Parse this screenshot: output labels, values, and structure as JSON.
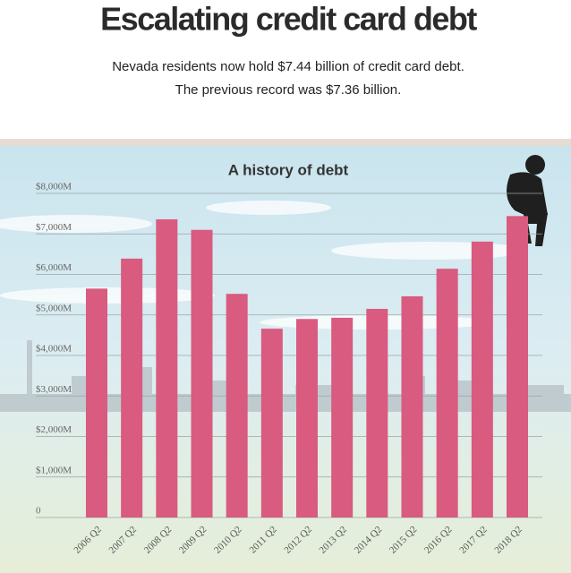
{
  "chart_data": {
    "type": "bar",
    "title": "Escalating credit card debt",
    "subtitle": [
      "Nevada residents now hold $7.44 billion of credit card debt.",
      "The previous record was $7.36 billion."
    ],
    "chart_title": "A history of debt",
    "categories": [
      "2006 Q2",
      "2007 Q2",
      "2008 Q2",
      "2009 Q2",
      "2010 Q2",
      "2011 Q2",
      "2012 Q2",
      "2013 Q2",
      "2014 Q2",
      "2015 Q2",
      "2016 Q2",
      "2017 Q2",
      "2018 Q2"
    ],
    "values": [
      5650,
      6390,
      7360,
      7100,
      5520,
      4660,
      4900,
      4930,
      5150,
      5460,
      6140,
      6810,
      7440
    ],
    "color": "#d95b7f",
    "ylim": [
      0,
      8000
    ],
    "yticks": [
      0,
      {
        "value": 1000,
        "label": "$1,000M"
      },
      {
        "value": 2000,
        "label": "$2,000M"
      },
      {
        "value": 3000,
        "label": "$3,000M"
      },
      {
        "value": 4000,
        "label": "$4,000M"
      },
      {
        "value": 5000,
        "label": "$5,000M"
      },
      {
        "value": 6000,
        "label": "$6,000M"
      },
      {
        "value": 7000,
        "label": "$7,000M"
      },
      {
        "value": 8000,
        "label": "$8,000M"
      }
    ],
    "grid": true
  }
}
